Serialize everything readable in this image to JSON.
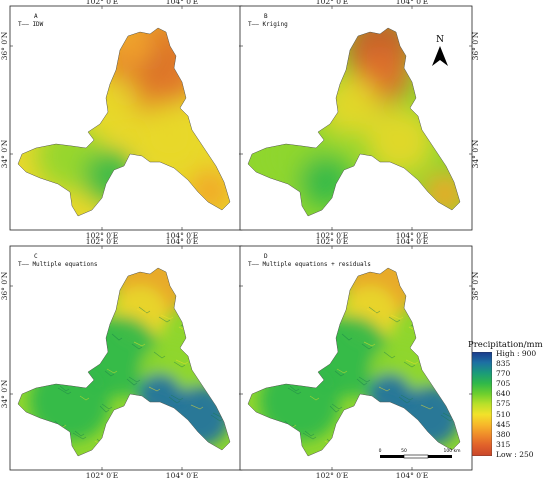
{
  "panels": [
    {
      "id": "A",
      "letter": "A",
      "method": "IDW",
      "style": "smooth-a"
    },
    {
      "id": "B",
      "letter": "B",
      "method": "Kriging",
      "style": "smooth-b"
    },
    {
      "id": "C",
      "letter": "C",
      "method": "Multiple equations",
      "style": "terrain"
    },
    {
      "id": "D",
      "letter": "D",
      "method": "Multiple equations + residuals",
      "style": "terrain"
    }
  ],
  "axis": {
    "lon_ticks": [
      "102° 0′E",
      "104° 0′E"
    ],
    "lat_ticks": [
      "36° 0′N",
      "34° 0′N"
    ]
  },
  "north_arrow": {
    "label": "N"
  },
  "scale_bar": {
    "labels": [
      "0",
      "50",
      "100 km"
    ]
  },
  "legend": {
    "title": "Precipitation/mm",
    "labels": [
      "High : 900",
      "835",
      "770",
      "705",
      "640",
      "575",
      "510",
      "445",
      "380",
      "315",
      "Low : 250"
    ],
    "colors": [
      "#1a3a8c",
      "#1d6fa3",
      "#1a9a7a",
      "#2fb84a",
      "#6ccf2e",
      "#b9e02a",
      "#f2e22a",
      "#f7b82a",
      "#ef8a2a",
      "#e0602a",
      "#c8452a"
    ]
  },
  "map_colors": {
    "high": "#1d6fa3",
    "green": "#2fb84a",
    "lime": "#8fd62e",
    "yellow": "#e8d82a",
    "orange": "#f2a52a",
    "deep_orange": "#e0702a",
    "red_brown": "#c8552a"
  }
}
